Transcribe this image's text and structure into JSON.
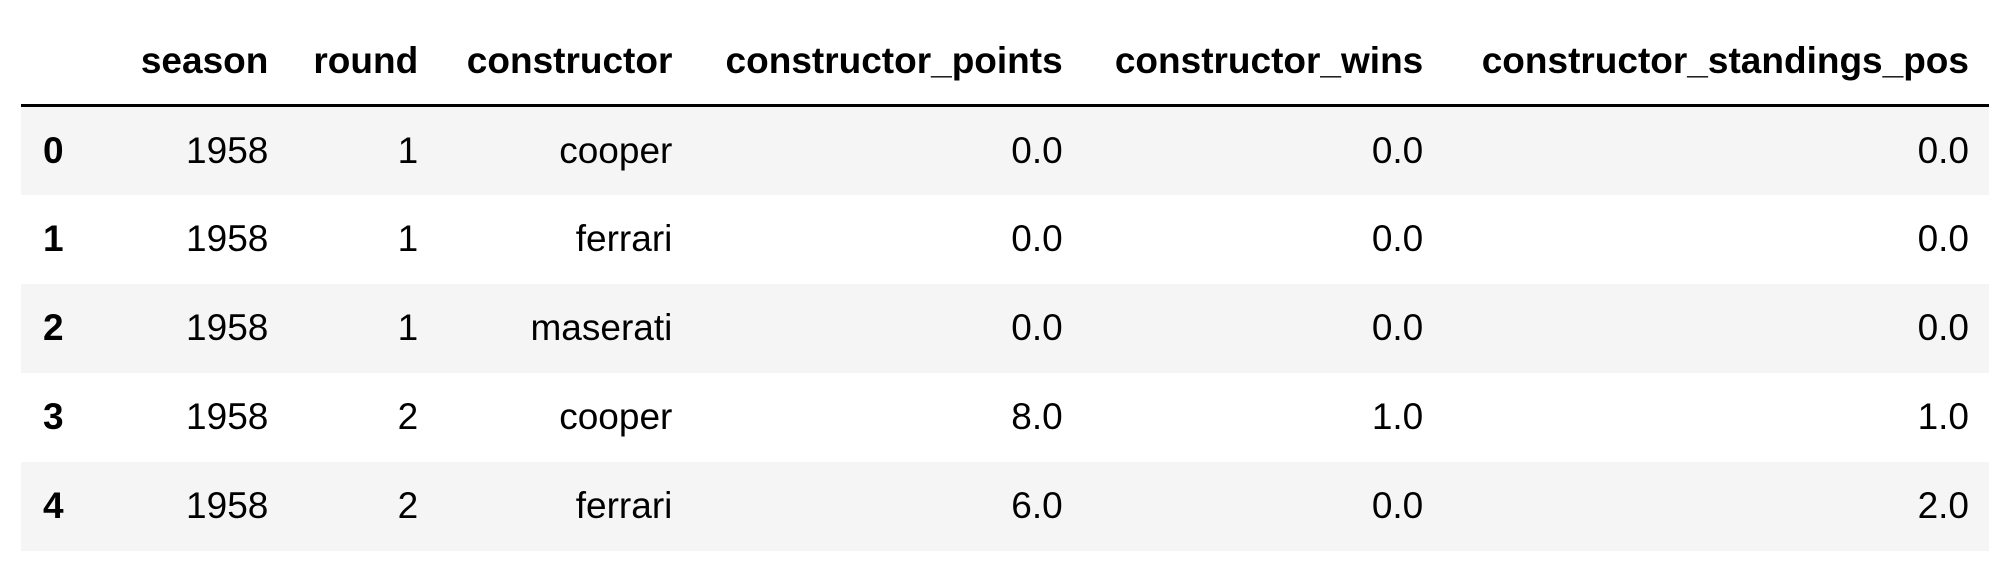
{
  "table": {
    "columns": [
      "",
      "season",
      "round",
      "constructor",
      "constructor_points",
      "constructor_wins",
      "constructor_standings_pos"
    ],
    "rows": [
      {
        "index": "0",
        "season": "1958",
        "round": "1",
        "constructor": "cooper",
        "constructor_points": "0.0",
        "constructor_wins": "0.0",
        "constructor_standings_pos": "0.0"
      },
      {
        "index": "1",
        "season": "1958",
        "round": "1",
        "constructor": "ferrari",
        "constructor_points": "0.0",
        "constructor_wins": "0.0",
        "constructor_standings_pos": "0.0"
      },
      {
        "index": "2",
        "season": "1958",
        "round": "1",
        "constructor": "maserati",
        "constructor_points": "0.0",
        "constructor_wins": "0.0",
        "constructor_standings_pos": "0.0"
      },
      {
        "index": "3",
        "season": "1958",
        "round": "2",
        "constructor": "cooper",
        "constructor_points": "8.0",
        "constructor_wins": "1.0",
        "constructor_standings_pos": "1.0"
      },
      {
        "index": "4",
        "season": "1958",
        "round": "2",
        "constructor": "ferrari",
        "constructor_points": "6.0",
        "constructor_wins": "0.0",
        "constructor_standings_pos": "2.0"
      }
    ]
  },
  "colors": {
    "stripe": "#f5f5f5",
    "header_rule": "#000000"
  }
}
